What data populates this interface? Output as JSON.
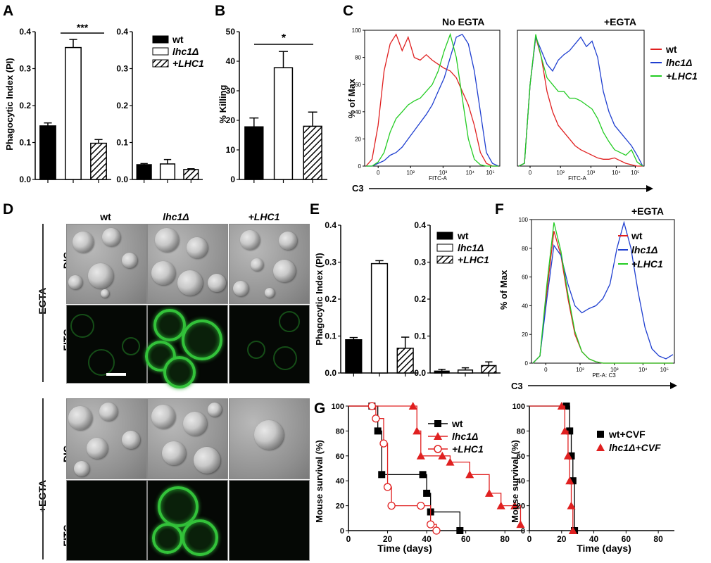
{
  "panels": {
    "A": "A",
    "B": "B",
    "C": "C",
    "D": "D",
    "E": "E",
    "F": "F",
    "G": "G"
  },
  "panel_A": {
    "ylabel": "Phagocytic Index (PI)",
    "sig": "***",
    "legend": [
      {
        "label": "wt",
        "fill": "solid"
      },
      {
        "label": "lhc1Δ",
        "fill": "open"
      },
      {
        "label": "+LHC1",
        "fill": "hatch"
      }
    ]
  },
  "panel_B": {
    "ylabel": "% Killing",
    "sig": "*"
  },
  "panel_C": {
    "ylabel": "% of Max",
    "xlabel": "C3",
    "titles": [
      "No EGTA",
      "+EGTA"
    ],
    "axis_name": "FITC-A",
    "legend": [
      {
        "label": "wt",
        "color": "#e02020"
      },
      {
        "label": "lhc1Δ",
        "color": "#1f3fd0"
      },
      {
        "label": "+LHC1",
        "color": "#22cc22"
      }
    ]
  },
  "panel_D": {
    "columns": [
      "wt",
      "lhc1Δ",
      "+LHC1"
    ],
    "rows": [
      "DIC",
      "FITC",
      "DIC",
      "FITC"
    ],
    "groups": [
      "-EGTA",
      "+EGTA"
    ]
  },
  "panel_E": {
    "ylabel": "Phagocytic Index (PI)",
    "legend": [
      {
        "label": "wt",
        "fill": "solid"
      },
      {
        "label": "lhc1Δ",
        "fill": "open"
      },
      {
        "label": "+LHC1",
        "fill": "hatch"
      }
    ]
  },
  "panel_F": {
    "title": "+EGTA",
    "ylabel": "% of Max",
    "xlabel": "C3",
    "axis_name": "PE-A: C3",
    "legend": [
      {
        "label": "wt",
        "color": "#e02020"
      },
      {
        "label": "lhc1Δ",
        "color": "#1f3fd0"
      },
      {
        "label": "+LHC1",
        "color": "#22cc22"
      }
    ]
  },
  "panel_G": {
    "ylabel": "Mouse survival (%)",
    "xlabel": "Time (days)",
    "legend_left": [
      {
        "label": "wt",
        "color": "#000000",
        "marker": "square"
      },
      {
        "label": "lhc1Δ",
        "color": "#e02020",
        "marker": "triangle"
      },
      {
        "label": "+LHC1",
        "color": "#e02020",
        "marker": "circle-open"
      }
    ],
    "legend_right": [
      {
        "label": "wt+CVF",
        "color": "#000000",
        "marker": "square"
      },
      {
        "label": "lhc1Δ+CVF",
        "color": "#e02020",
        "marker": "triangle"
      }
    ]
  },
  "chart_data": [
    {
      "type": "bar",
      "id": "A1",
      "categories": [
        "wt",
        "lhc1Δ",
        "+LHC1"
      ],
      "values": [
        0.145,
        0.357,
        0.098
      ],
      "errors": [
        0.008,
        0.022,
        0.01
      ],
      "ylim": [
        0,
        0.4
      ],
      "yticks": [
        "0.0",
        "0.1",
        "0.2",
        "0.3",
        "0.4"
      ]
    },
    {
      "type": "bar",
      "id": "A2",
      "categories": [
        "wt",
        "lhc1Δ",
        "+LHC1"
      ],
      "values": [
        0.04,
        0.042,
        0.027
      ],
      "errors": [
        0.003,
        0.012,
        0.002
      ],
      "ylim": [
        0,
        0.4
      ],
      "yticks": [
        "0.0",
        "0.1",
        "0.2",
        "0.3",
        "0.4"
      ]
    },
    {
      "type": "bar",
      "id": "B",
      "categories": [
        "wt",
        "lhc1Δ",
        "+LHC1"
      ],
      "values": [
        17.8,
        37.8,
        18.0
      ],
      "errors": [
        3.0,
        5.5,
        4.8
      ],
      "ylim": [
        0,
        50
      ],
      "yticks": [
        "0",
        "10",
        "20",
        "30",
        "40",
        "50"
      ]
    },
    {
      "type": "bar",
      "id": "E1",
      "categories": [
        "wt",
        "lhc1Δ",
        "+LHC1"
      ],
      "values": [
        0.09,
        0.296,
        0.067
      ],
      "errors": [
        0.006,
        0.008,
        0.03
      ],
      "ylim": [
        0,
        0.4
      ],
      "yticks": [
        "0.0",
        "0.1",
        "0.2",
        "0.3",
        "0.4"
      ]
    },
    {
      "type": "bar",
      "id": "E2",
      "categories": [
        "wt",
        "lhc1Δ",
        "+LHC1"
      ],
      "values": [
        0.005,
        0.008,
        0.02
      ],
      "errors": [
        0.005,
        0.006,
        0.01
      ],
      "ylim": [
        0,
        0.4
      ],
      "yticks": [
        "0.0",
        "0.1",
        "0.2",
        "0.3",
        "0.4"
      ]
    },
    {
      "type": "line",
      "id": "C-noEGTA",
      "xscale": "log",
      "yticks": [
        "0",
        "20",
        "40",
        "60",
        "80",
        "100"
      ],
      "xticklabels": [
        "0",
        "10²",
        "10³",
        "10⁴",
        "10⁵"
      ],
      "ylim": [
        0,
        100
      ],
      "series": [
        {
          "name": "wt",
          "color": "#e02020",
          "y": [
            0,
            5,
            30,
            70,
            90,
            97,
            85,
            95,
            80,
            78,
            82,
            78,
            75,
            72,
            70,
            65,
            55,
            45,
            30,
            10,
            2,
            0,
            0
          ]
        },
        {
          "name": "lhc1Δ",
          "color": "#1f3fd0",
          "y": [
            0,
            0,
            2,
            4,
            8,
            10,
            14,
            20,
            26,
            32,
            38,
            45,
            55,
            65,
            80,
            95,
            97,
            90,
            70,
            40,
            10,
            2,
            0
          ]
        },
        {
          "name": "+LHC1",
          "color": "#22cc22",
          "y": [
            0,
            0,
            3,
            10,
            25,
            35,
            40,
            45,
            48,
            50,
            55,
            60,
            70,
            85,
            97,
            80,
            50,
            20,
            5,
            1,
            0,
            0,
            0
          ]
        }
      ]
    },
    {
      "type": "line",
      "id": "C-EGTA",
      "xscale": "log",
      "xticklabels": [
        "0",
        "10²",
        "10³",
        "10⁴",
        "10⁵"
      ],
      "ylim": [
        0,
        100
      ],
      "series": [
        {
          "name": "wt",
          "color": "#e02020",
          "y": [
            0,
            2,
            60,
            95,
            80,
            55,
            40,
            30,
            25,
            20,
            15,
            12,
            10,
            8,
            6,
            5,
            5,
            6,
            4,
            2,
            1,
            0,
            0
          ]
        },
        {
          "name": "lhc1Δ",
          "color": "#1f3fd0",
          "y": [
            0,
            2,
            60,
            95,
            85,
            75,
            70,
            78,
            82,
            85,
            90,
            95,
            88,
            92,
            80,
            55,
            40,
            30,
            25,
            20,
            15,
            8,
            0
          ]
        },
        {
          "name": "+LHC1",
          "color": "#22cc22",
          "y": [
            0,
            2,
            60,
            97,
            80,
            65,
            60,
            55,
            55,
            50,
            50,
            48,
            45,
            42,
            35,
            25,
            18,
            12,
            10,
            8,
            12,
            3,
            0
          ]
        }
      ]
    },
    {
      "type": "line",
      "id": "F",
      "xscale": "log",
      "yticks": [
        "0",
        "20",
        "40",
        "60",
        "80",
        "100"
      ],
      "xticklabels": [
        "0",
        "10²",
        "10³",
        "10⁴",
        "10⁵"
      ],
      "ylim": [
        0,
        100
      ],
      "series": [
        {
          "name": "wt",
          "color": "#e02020",
          "y": [
            0,
            5,
            50,
            92,
            75,
            45,
            20,
            8,
            3,
            1,
            0,
            0,
            0,
            0,
            0,
            0,
            0,
            0,
            0,
            0,
            0
          ]
        },
        {
          "name": "lhc1Δ",
          "color": "#1f3fd0",
          "y": [
            0,
            5,
            45,
            82,
            75,
            55,
            40,
            35,
            38,
            40,
            45,
            55,
            80,
            98,
            80,
            50,
            25,
            10,
            5,
            3,
            6
          ]
        },
        {
          "name": "+LHC1",
          "color": "#22cc22",
          "y": [
            0,
            5,
            55,
            98,
            78,
            48,
            22,
            8,
            3,
            1,
            0,
            0,
            0,
            0,
            0,
            0,
            0,
            0,
            0,
            0,
            0
          ]
        }
      ]
    },
    {
      "type": "line",
      "id": "G1",
      "xlim": [
        0,
        90
      ],
      "ylim": [
        0,
        100
      ],
      "xticks": [
        "0",
        "20",
        "40",
        "60",
        "80"
      ],
      "yticks": [
        "0",
        "20",
        "40",
        "60",
        "80",
        "100"
      ],
      "series": [
        {
          "name": "wt",
          "color": "#000000",
          "x": [
            0,
            12,
            15,
            17,
            38,
            40,
            42,
            57
          ],
          "y": [
            100,
            100,
            80,
            45,
            45,
            30,
            15,
            0
          ]
        },
        {
          "name": "lhc1Δ",
          "color": "#e02020",
          "x": [
            0,
            33,
            35,
            37,
            48,
            52,
            62,
            72,
            78,
            85,
            88
          ],
          "y": [
            100,
            100,
            80,
            60,
            60,
            55,
            45,
            30,
            20,
            20,
            5
          ]
        },
        {
          "name": "+LHC1",
          "color": "#e02020",
          "x": [
            0,
            12,
            14,
            18,
            20,
            22,
            37,
            42,
            45
          ],
          "y": [
            100,
            100,
            90,
            70,
            35,
            20,
            20,
            5,
            0
          ]
        }
      ]
    },
    {
      "type": "line",
      "id": "G2",
      "xlim": [
        0,
        90
      ],
      "ylim": [
        0,
        100
      ],
      "xticks": [
        "0",
        "20",
        "40",
        "60",
        "80"
      ],
      "yticks": [
        "0",
        "20",
        "40",
        "60",
        "80",
        "100"
      ],
      "series": [
        {
          "name": "wt+CVF",
          "color": "#000000",
          "x": [
            0,
            23,
            25,
            26,
            27,
            28
          ],
          "y": [
            100,
            100,
            80,
            60,
            40,
            0
          ]
        },
        {
          "name": "lhc1Δ+CVF",
          "color": "#e02020",
          "x": [
            0,
            20,
            22,
            24,
            25,
            26,
            27
          ],
          "y": [
            100,
            100,
            80,
            60,
            40,
            20,
            0
          ]
        }
      ]
    }
  ]
}
